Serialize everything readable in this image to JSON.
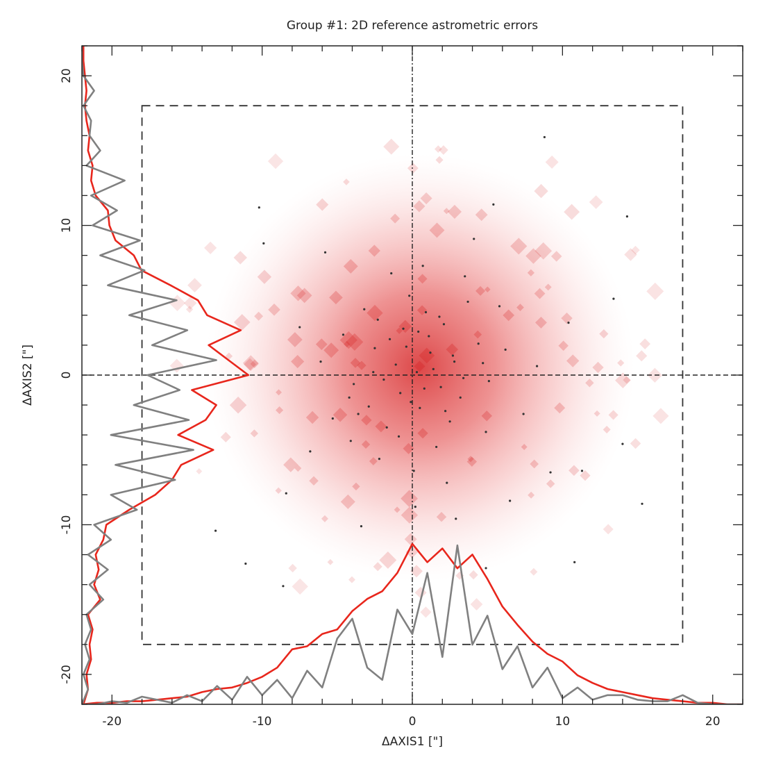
{
  "chart_data": {
    "type": "scatter",
    "title": "Group #1: 2D reference astrometric errors",
    "xlabel": "ΔAXIS1 [\"]",
    "ylabel": "ΔAXIS2 [\"]",
    "xlim": [
      -22,
      22
    ],
    "ylim": [
      -22,
      22
    ],
    "x_ticks": [
      -20,
      -10,
      0,
      10,
      20
    ],
    "y_ticks": [
      -20,
      -10,
      0,
      10,
      20
    ],
    "x_tick_labels": [
      "-20",
      "-10",
      "0",
      "10",
      "20"
    ],
    "y_tick_labels": [
      "-20",
      "-10",
      "0",
      "10",
      "20"
    ],
    "grid": false,
    "reference_box": {
      "x": [
        -18,
        18
      ],
      "y": [
        -18,
        18
      ],
      "style": "dashed"
    },
    "zero_lines": {
      "x": 0,
      "y": 0,
      "style": "dashed"
    },
    "density": {
      "description": "2D density of reference astrometric errors",
      "color": "#d62728",
      "center": [
        0.5,
        0.5
      ],
      "sigma": [
        5.5,
        5.5
      ]
    },
    "scatter_points": [
      [
        0.3,
        0.2
      ],
      [
        1.2,
        1.5
      ],
      [
        -0.8,
        -1.2
      ],
      [
        2.1,
        3.4
      ],
      [
        -2.5,
        1.8
      ],
      [
        3.2,
        -1.5
      ],
      [
        0.9,
        4.2
      ],
      [
        -1.7,
        -3.5
      ],
      [
        4.4,
        2.1
      ],
      [
        -3.9,
        -0.6
      ],
      [
        1.6,
        -4.8
      ],
      [
        -0.2,
        5.3
      ],
      [
        2.8,
        0.9
      ],
      [
        -4.6,
        2.7
      ],
      [
        0.5,
        -2.2
      ],
      [
        3.7,
        4.9
      ],
      [
        -2.2,
        -5.6
      ],
      [
        5.1,
        -0.4
      ],
      [
        -5.3,
        -2.9
      ],
      [
        1.1,
        2.6
      ],
      [
        -1.1,
        0.7
      ],
      [
        2.5,
        -3.1
      ],
      [
        0.1,
        -6.4
      ],
      [
        -3.2,
        4.4
      ],
      [
        4.9,
        -3.8
      ],
      [
        -6.1,
        0.9
      ],
      [
        6.2,
        1.7
      ],
      [
        -0.6,
        3.1
      ],
      [
        1.9,
        -0.8
      ],
      [
        -2.9,
        -2.1
      ],
      [
        3.5,
        6.6
      ],
      [
        -4.1,
        -4.4
      ],
      [
        0.7,
        7.3
      ],
      [
        5.8,
        4.6
      ],
      [
        -6.8,
        -5.1
      ],
      [
        2.3,
        -7.2
      ],
      [
        -1.4,
        6.8
      ],
      [
        7.4,
        -2.6
      ],
      [
        -7.5,
        3.2
      ],
      [
        0.2,
        -8.8
      ],
      [
        4.1,
        9.1
      ],
      [
        -5.8,
        8.2
      ],
      [
        8.3,
        0.6
      ],
      [
        -8.4,
        -7.9
      ],
      [
        9.2,
        -6.5
      ],
      [
        -9.9,
        8.8
      ],
      [
        10.4,
        3.5
      ],
      [
        -3.4,
        -10.1
      ],
      [
        2.9,
        -9.6
      ],
      [
        6.5,
        -8.4
      ],
      [
        11.3,
        -6.4
      ],
      [
        13.4,
        5.1
      ],
      [
        -10.2,
        11.2
      ],
      [
        5.4,
        11.4
      ],
      [
        14.3,
        10.6
      ],
      [
        8.8,
        15.9
      ],
      [
        -13.1,
        -10.4
      ],
      [
        -11.1,
        -12.6
      ],
      [
        -8.6,
        -14.1
      ],
      [
        4.9,
        -12.9
      ],
      [
        10.8,
        -12.5
      ],
      [
        15.3,
        -8.6
      ],
      [
        14.0,
        -4.6
      ],
      [
        -4.2,
        -1.5
      ],
      [
        1.4,
        0.4
      ],
      [
        -0.4,
        1.9
      ],
      [
        0.8,
        -0.9
      ],
      [
        -1.9,
        -0.3
      ],
      [
        2.7,
        1.3
      ],
      [
        -2.6,
        0.2
      ],
      [
        3.4,
        -0.2
      ],
      [
        -0.1,
        -1.8
      ],
      [
        1.8,
        3.9
      ],
      [
        -3.6,
        -2.6
      ],
      [
        4.7,
        0.8
      ],
      [
        -1.5,
        2.4
      ],
      [
        2.2,
        -2.4
      ],
      [
        -2.3,
        3.7
      ],
      [
        0.4,
        2.9
      ],
      [
        -0.9,
        -4.1
      ]
    ],
    "series": [
      {
        "name": "",
        "color": "#e8261c",
        "y": [
          -22,
          -21,
          -20,
          -19,
          -18,
          -17,
          -16,
          -15,
          -14,
          -13,
          -12,
          -11,
          -10,
          -9,
          -8,
          -7,
          -6,
          -5,
          -4,
          -3,
          -2,
          -1,
          0,
          1,
          2,
          3,
          4,
          5,
          6,
          7,
          8,
          9,
          10,
          11,
          12,
          13,
          14,
          15,
          16,
          17,
          18,
          19,
          20,
          21,
          22
        ],
        "values": [
          0.1,
          0.4,
          0.3,
          0.6,
          0.5,
          0.7,
          0.4,
          1.2,
          0.8,
          1.1,
          0.9,
          1.4,
          1.6,
          3.1,
          4.8,
          5.9,
          6.5,
          8.6,
          6.3,
          8.1,
          8.8,
          7.2,
          10.9,
          9.6,
          8.3,
          10.4,
          8.2,
          7.6,
          5.8,
          3.9,
          3.4,
          2.2,
          1.8,
          1.7,
          0.9,
          0.6,
          0.7,
          0.4,
          0.5,
          0.3,
          0.2,
          0.3,
          0.2,
          0.1,
          0.1
        ]
      },
      {
        "name": "",
        "color": "#808080",
        "y": [
          -22,
          -21,
          -20,
          -19,
          -18,
          -17,
          -16,
          -15,
          -14,
          -13,
          -12,
          -11,
          -10,
          -9,
          -8,
          -7,
          -6,
          -5,
          -4,
          -3,
          -2,
          -1,
          0,
          1,
          2,
          3,
          4,
          5,
          6,
          7,
          8,
          9,
          10,
          11,
          12,
          13,
          14,
          15,
          16,
          17,
          18,
          19,
          20,
          21,
          22
        ],
        "values": [
          0.0,
          0.4,
          0.1,
          0.5,
          0.2,
          0.6,
          0.3,
          1.4,
          0.5,
          1.7,
          0.4,
          1.9,
          0.8,
          3.6,
          1.9,
          6.1,
          2.2,
          7.3,
          1.9,
          7.0,
          3.4,
          6.4,
          4.3,
          8.8,
          4.6,
          6.9,
          3.1,
          6.2,
          1.7,
          4.1,
          1.2,
          3.8,
          0.7,
          2.3,
          0.6,
          2.8,
          0.3,
          1.2,
          0.5,
          0.6,
          0.1,
          0.8,
          0.1,
          0.0,
          0.0
        ]
      },
      {
        "name": "",
        "color": "#e8261c",
        "x": [
          -22,
          -21,
          -20,
          -19,
          -18,
          -17,
          -16,
          -15,
          -14,
          -13,
          -12,
          -11,
          -10,
          -9,
          -8,
          -7,
          -6,
          -5,
          -4,
          -3,
          -2,
          -1,
          0,
          1,
          2,
          3,
          4,
          5,
          6,
          7,
          8,
          9,
          10,
          11,
          12,
          13,
          14,
          15,
          16,
          17,
          18,
          19,
          20,
          21,
          22
        ],
        "values": [
          0.0,
          0.1,
          0.1,
          0.2,
          0.2,
          0.3,
          0.4,
          0.5,
          0.8,
          1.0,
          1.1,
          1.4,
          1.8,
          2.4,
          3.6,
          3.8,
          4.6,
          4.9,
          6.1,
          6.9,
          7.4,
          8.6,
          10.5,
          9.3,
          10.2,
          8.9,
          9.8,
          8.2,
          6.4,
          5.2,
          4.1,
          3.3,
          2.8,
          1.9,
          1.4,
          1.0,
          0.8,
          0.6,
          0.4,
          0.3,
          0.2,
          0.1,
          0.1,
          0.0,
          0.0
        ]
      },
      {
        "name": "",
        "color": "#808080",
        "x": [
          -22,
          -21,
          -20,
          -19,
          -18,
          -17,
          -16,
          -15,
          -14,
          -13,
          -12,
          -11,
          -10,
          -9,
          -8,
          -7,
          -6,
          -5,
          -4,
          -3,
          -2,
          -1,
          0,
          1,
          2,
          3,
          4,
          5,
          6,
          7,
          8,
          9,
          10,
          11,
          12,
          13,
          14,
          15,
          16,
          17,
          18,
          19,
          20,
          21,
          22
        ],
        "values": [
          0.0,
          0.0,
          0.2,
          0.1,
          0.5,
          0.3,
          0.1,
          0.6,
          0.2,
          1.2,
          0.3,
          1.8,
          0.6,
          1.6,
          0.4,
          2.2,
          1.1,
          4.3,
          5.6,
          2.4,
          1.6,
          6.2,
          4.6,
          8.6,
          3.1,
          10.4,
          3.9,
          5.8,
          2.3,
          3.8,
          1.1,
          2.4,
          0.4,
          1.1,
          0.3,
          0.6,
          0.6,
          0.3,
          0.2,
          0.2,
          0.6,
          0.1,
          0.0,
          0.0,
          0.0
        ]
      }
    ]
  }
}
